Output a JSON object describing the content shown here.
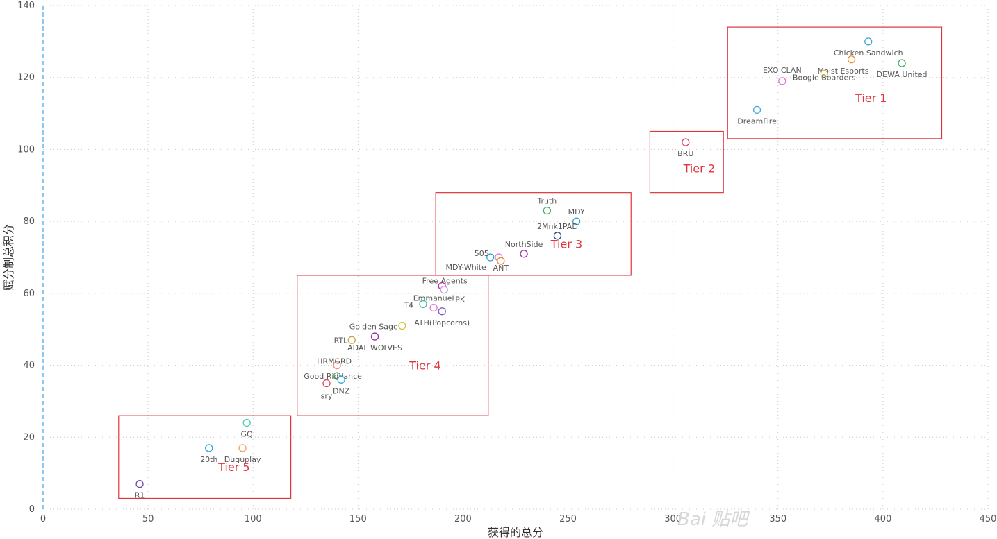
{
  "chart_data": {
    "type": "scatter",
    "xlabel": "获得的总分",
    "ylabel": "赋分制总积分",
    "xlim": [
      0,
      450
    ],
    "ylim": [
      0,
      140
    ],
    "x_ticks": [
      "0",
      "50",
      "100",
      "150",
      "200",
      "250",
      "300",
      "350",
      "400",
      "450"
    ],
    "y_ticks": [
      "0",
      "20",
      "40",
      "60",
      "80",
      "100",
      "120",
      "140"
    ],
    "grid": "dotted",
    "points": [
      {
        "label": "Chicken Sandwich",
        "x": 393,
        "y": 130,
        "color": "#41a5d0"
      },
      {
        "label": "DEWA United",
        "x": 409,
        "y": 124,
        "color": "#3fae5a"
      },
      {
        "label": "Moist Esports",
        "x": 385,
        "y": 125,
        "color": "#f08a2c"
      },
      {
        "label": "Boogie Boarders",
        "x": 372,
        "y": 121,
        "color": "#d6c03a"
      },
      {
        "label": "EXO CLAN",
        "x": 352,
        "y": 119,
        "color": "#e06fd1"
      },
      {
        "label": "DreamFire",
        "x": 340,
        "y": 111,
        "color": "#4aa5e0"
      },
      {
        "label": "BRU",
        "x": 306,
        "y": 102,
        "color": "#e0455a"
      },
      {
        "label": "Truth",
        "x": 240,
        "y": 83,
        "color": "#3fae5a"
      },
      {
        "label": "MDY",
        "x": 254,
        "y": 80,
        "color": "#2ba3d6"
      },
      {
        "label": "2Mnk1PAD",
        "x": 245,
        "y": 76,
        "color": "#2a3e8c"
      },
      {
        "label": "NorthSide",
        "x": 229,
        "y": 71,
        "color": "#9b2ea8"
      },
      {
        "label": "505",
        "x": 213,
        "y": 70,
        "color": "#2ba3d6"
      },
      {
        "label": "MDY-White",
        "x": 217,
        "y": 70,
        "color": "#e06fd1"
      },
      {
        "label": "ANT",
        "x": 218,
        "y": 69,
        "color": "#f08a2c"
      },
      {
        "label": "Free Agents",
        "x": 190,
        "y": 62,
        "color": "#c027b8"
      },
      {
        "label": "PK",
        "x": 191,
        "y": 61,
        "color": "#c79bdc"
      },
      {
        "label": "Emmanuel",
        "x": 186,
        "y": 56,
        "color": "#e06fd1"
      },
      {
        "label": "T4",
        "x": 181,
        "y": 57,
        "color": "#3fb8a6"
      },
      {
        "label": "ATH(Popcorns)",
        "x": 190,
        "y": 55,
        "color": "#7b55c4"
      },
      {
        "label": "Golden Sage",
        "x": 171,
        "y": 51,
        "color": "#d6c03a"
      },
      {
        "label": "ADAL WOLVES",
        "x": 158,
        "y": 48,
        "color": "#9b2ea8"
      },
      {
        "label": "RTL",
        "x": 147,
        "y": 47,
        "color": "#c7a23a"
      },
      {
        "label": "HRMGRD",
        "x": 140,
        "y": 40,
        "color": "#f08a8a"
      },
      {
        "label": "Good Riddance",
        "x": 140,
        "y": 37,
        "color": "#3fae5a"
      },
      {
        "label": "DNZ",
        "x": 142,
        "y": 36,
        "color": "#2ba3d6"
      },
      {
        "label": "sry",
        "x": 135,
        "y": 35,
        "color": "#e0455a"
      },
      {
        "label": "GQ",
        "x": 97,
        "y": 24,
        "color": "#3fd0b0"
      },
      {
        "label": "20th",
        "x": 79,
        "y": 17,
        "color": "#2ba3d6"
      },
      {
        "label": "Duguplay",
        "x": 95,
        "y": 17,
        "color": "#f0a060"
      },
      {
        "label": "R1",
        "x": 46,
        "y": 7,
        "color": "#6a4aa8"
      }
    ],
    "tiers": [
      {
        "label": "Tier 1",
        "x_range": [
          326,
          428
        ],
        "y_range": [
          103,
          134
        ]
      },
      {
        "label": "Tier 2",
        "x_range": [
          289,
          324
        ],
        "y_range": [
          88,
          105
        ]
      },
      {
        "label": "Tier 3",
        "x_range": [
          187,
          280
        ],
        "y_range": [
          65,
          88
        ]
      },
      {
        "label": "Tier 4",
        "x_range": [
          121,
          212
        ],
        "y_range": [
          26,
          65
        ]
      },
      {
        "label": "Tier 5",
        "x_range": [
          36,
          118
        ],
        "y_range": [
          3,
          26
        ]
      }
    ],
    "tier_box_color": "#e0343c"
  },
  "watermark": "Bai 贴吧"
}
